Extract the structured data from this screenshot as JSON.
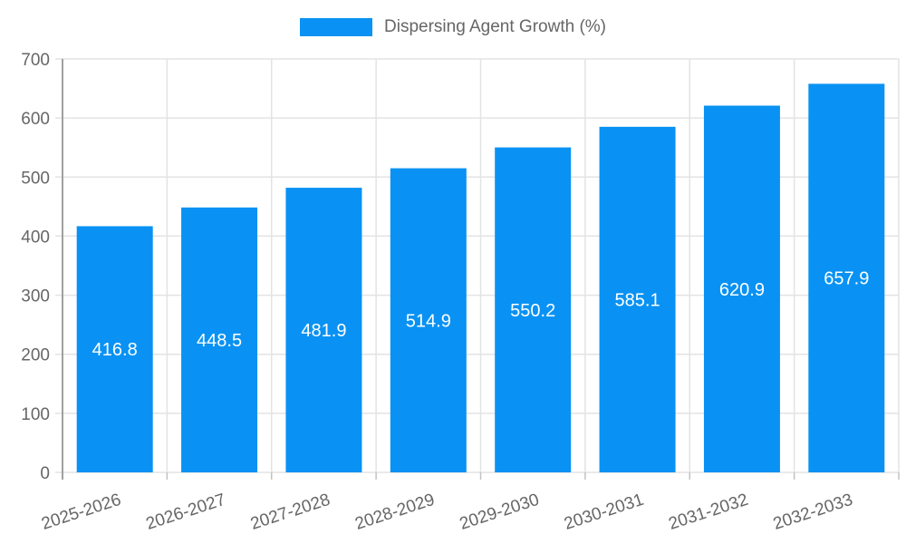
{
  "chart_data": {
    "type": "bar",
    "title": "Dispersing Agent Growth (%)",
    "categories": [
      "2025-2026",
      "2026-2027",
      "2027-2028",
      "2028-2029",
      "2029-2030",
      "2030-2031",
      "2031-2032",
      "2032-2033"
    ],
    "values": [
      416.8,
      448.5,
      481.9,
      514.9,
      550.2,
      585.1,
      620.9,
      657.9
    ],
    "value_labels": [
      "416.8",
      "448.5",
      "481.9",
      "514.9",
      "550.2",
      "585.1",
      "620.9",
      "657.9"
    ],
    "xlabel": "",
    "ylabel": "",
    "ylim": [
      0,
      700
    ],
    "y_ticks": [
      0,
      100,
      200,
      300,
      400,
      500,
      600,
      700
    ],
    "grid": "on",
    "legend_position": "top",
    "colors": {
      "bar": "#0992f3",
      "grid_line": "#e3e3e3",
      "axis_line": "#a0a0a0",
      "tick_mark": "#c2c2c2",
      "axis_text": "#666666",
      "value_text": "#ffffff",
      "background": "#ffffff"
    }
  }
}
